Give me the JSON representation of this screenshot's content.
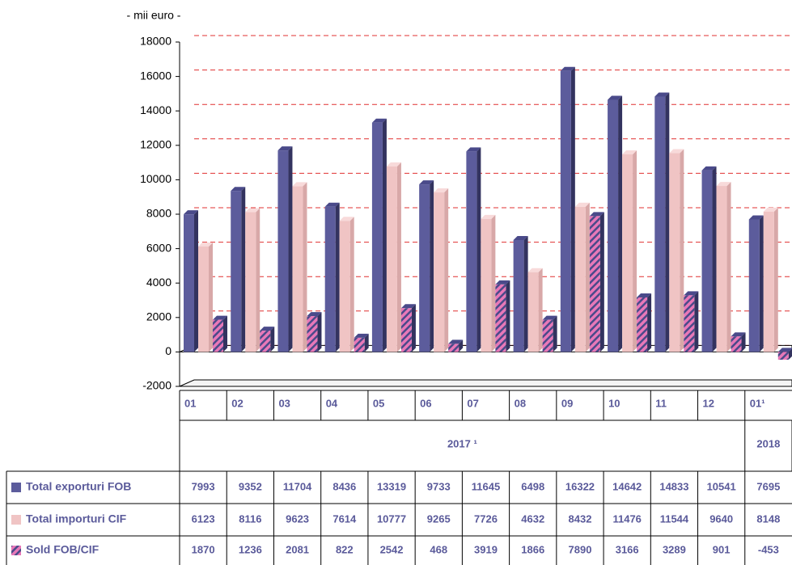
{
  "chart_data": {
    "type": "bar",
    "y_label": "- mii euro -",
    "categories": [
      "01",
      "02",
      "03",
      "04",
      "05",
      "06",
      "07",
      "08",
      "09",
      "10",
      "11",
      "12",
      "01¹"
    ],
    "groups": [
      {
        "label": "2017 ¹",
        "size": 12
      },
      {
        "label": "2018",
        "size": 1
      }
    ],
    "series": [
      {
        "name": "Total exporturi FOB",
        "color": "#5c5c9c",
        "values": [
          7993,
          9352,
          11704,
          8436,
          13319,
          9733,
          11645,
          6498,
          16322,
          14642,
          14833,
          10541,
          7695
        ]
      },
      {
        "name": "Total importuri CIF",
        "color": "#f0c4c4",
        "values": [
          6123,
          8116,
          9623,
          7614,
          10777,
          9265,
          7726,
          4632,
          8432,
          11476,
          11544,
          9640,
          8148
        ]
      },
      {
        "name": "Sold FOB/CIF",
        "color": "#e878b8",
        "values": [
          1870,
          1236,
          2081,
          822,
          2542,
          468,
          3919,
          1866,
          7890,
          3166,
          3289,
          901,
          -453
        ]
      }
    ],
    "ylim": [
      -2000,
      18000
    ],
    "yticks": [
      -2000,
      0,
      2000,
      4000,
      6000,
      8000,
      10000,
      12000,
      14000,
      16000,
      18000
    ],
    "grid": true
  }
}
